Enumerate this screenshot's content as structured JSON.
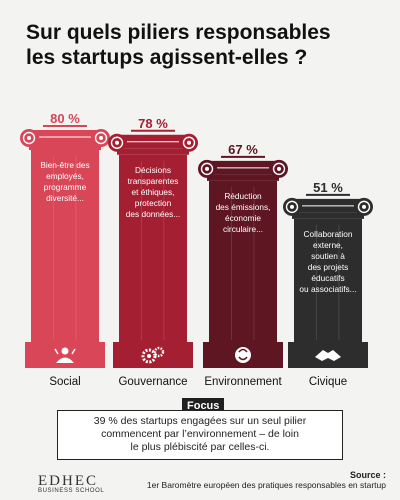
{
  "title_lines": [
    "Sur quels piliers responsables",
    "les startups agissent-elles ?"
  ],
  "colors": {
    "social": "#d84657",
    "gouvernance": "#a51f33",
    "environnement": "#5e1623",
    "civique": "#2d2d2d",
    "text_light": "#ffffff"
  },
  "chart_data": {
    "type": "bar",
    "title": "Sur quels piliers responsables les startups agissent-elles ?",
    "categories": [
      "Social",
      "Gouvernance",
      "Environnement",
      "Civique"
    ],
    "values": [
      80,
      78,
      67,
      51
    ],
    "value_labels": [
      "80 %",
      "78 %",
      "67 %",
      "51 %"
    ],
    "unit": "%",
    "ylim": [
      0,
      100
    ],
    "grid": false,
    "legend": "none",
    "descriptions": [
      [
        "Bien-être des",
        "employés,",
        "programme",
        "diversité..."
      ],
      [
        "Décisions",
        "transparentes",
        "et éthiques,",
        "protection",
        "des données..."
      ],
      [
        "Réduction",
        "des émissions,",
        "économie",
        "circulaire..."
      ],
      [
        "Collaboration",
        "externe,",
        "soutien à",
        "des projets",
        "éducatifs",
        "ou associatifs..."
      ]
    ],
    "icons": [
      "people-hands-icon",
      "gears-icon",
      "recycle-globe-icon",
      "handshake-icon"
    ]
  },
  "focus": {
    "label": "Focus",
    "lines": [
      "39 % des startups engagées sur un seul pilier",
      "commencent par l’environnement – de loin",
      "le plus plébiscité par celles-ci."
    ]
  },
  "logo": {
    "main": "EDHEC",
    "sub": "BUSINESS SCHOOL"
  },
  "source": {
    "label": "Source :",
    "text": "1er Baromètre européen des pratiques responsables en startup"
  }
}
